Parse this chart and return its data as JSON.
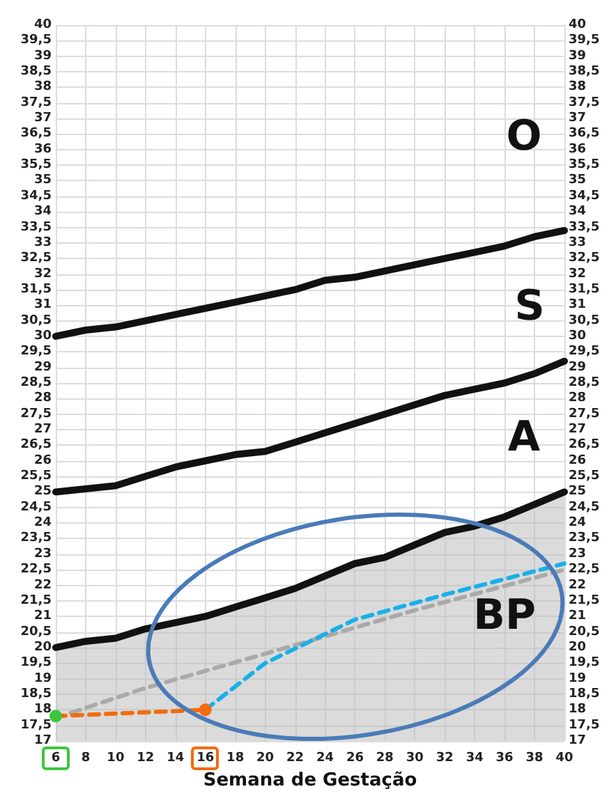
{
  "chart_data": {
    "type": "line",
    "xlabel": "Semana de Gestação",
    "xlim": [
      6,
      40
    ],
    "xticks": [
      6,
      8,
      10,
      12,
      14,
      16,
      18,
      20,
      22,
      24,
      26,
      28,
      30,
      32,
      34,
      36,
      38,
      40
    ],
    "ylim": [
      17,
      40
    ],
    "yticks": [
      17,
      {
        "value": 17.5,
        "label": "17,5"
      },
      18,
      {
        "value": 18.5,
        "label": "18,5"
      },
      19,
      {
        "value": 19.5,
        "label": "19,5"
      },
      20,
      {
        "value": 20.5,
        "label": "20,5"
      },
      21,
      {
        "value": 21.5,
        "label": "21,5"
      },
      22,
      {
        "value": 22.5,
        "label": "22,5"
      },
      23,
      {
        "value": 23.5,
        "label": "23,5"
      },
      24,
      {
        "value": 24.5,
        "label": "24,5"
      },
      25,
      {
        "value": 25.5,
        "label": "25,5"
      },
      26,
      {
        "value": 26.5,
        "label": "26,5"
      },
      27,
      {
        "value": 27.5,
        "label": "27,5"
      },
      28,
      {
        "value": 28.5,
        "label": "28,5"
      },
      29,
      {
        "value": 29.5,
        "label": "29,5"
      },
      30,
      {
        "value": 30.5,
        "label": "30,5"
      },
      31,
      {
        "value": 31.5,
        "label": "31,5"
      },
      32,
      {
        "value": 32.5,
        "label": "32,5"
      },
      33,
      {
        "value": 33.5,
        "label": "33,5"
      },
      34,
      {
        "value": 34.5,
        "label": "34,5"
      },
      35,
      {
        "value": 35.5,
        "label": "35,5"
      },
      36,
      {
        "value": 36.5,
        "label": "36,5"
      },
      37,
      {
        "value": 37.5,
        "label": "37,5"
      },
      38,
      {
        "value": 38.5,
        "label": "38,5"
      },
      39,
      {
        "value": 39.5,
        "label": "39,5"
      },
      40
    ],
    "y2lim": [
      17,
      40
    ],
    "y2ticks": [
      17,
      {
        "value": 17.5,
        "label": "17,5"
      },
      18,
      {
        "value": 18.5,
        "label": "18,5"
      },
      19,
      {
        "value": 19.5,
        "label": "19,5"
      },
      20,
      {
        "value": 20.5,
        "label": "20,5"
      },
      21,
      {
        "value": 21.5,
        "label": "21,5"
      },
      22,
      {
        "value": 22.5,
        "label": "22,5"
      },
      23,
      {
        "value": 23.5,
        "label": "23,5"
      },
      24,
      {
        "value": 24.5,
        "label": "24,5"
      },
      25,
      {
        "value": 25.5,
        "label": "25,5"
      },
      26,
      {
        "value": 26.5,
        "label": "26,5"
      },
      27,
      {
        "value": 27.5,
        "label": "27,5"
      },
      28,
      {
        "value": 28.5,
        "label": "28,5"
      },
      29,
      {
        "value": 29.5,
        "label": "29,5"
      },
      30,
      {
        "value": 30.5,
        "label": "30,5"
      },
      31,
      {
        "value": 31.5,
        "label": "31,5"
      },
      32,
      {
        "value": 32.5,
        "label": "32,5"
      },
      33,
      {
        "value": 33.5,
        "label": "33,5"
      },
      34,
      {
        "value": 34.5,
        "label": "34,5"
      },
      35,
      {
        "value": 35.5,
        "label": "35,5"
      },
      36,
      {
        "value": 36.5,
        "label": "36,5"
      },
      37,
      {
        "value": 37.5,
        "label": "37,5"
      },
      38,
      {
        "value": 38.5,
        "label": "38,5"
      },
      39,
      {
        "value": 39.5,
        "label": "39,5"
      },
      40
    ],
    "grid": true,
    "marker": "none",
    "series": [
      {
        "type": "area",
        "color": "#111111",
        "line_style": "solid",
        "x": [
          6,
          8,
          10,
          12,
          14,
          16,
          18,
          20,
          22,
          24,
          26,
          28,
          30,
          32,
          34,
          36,
          38,
          40
        ],
        "values": [
          20,
          20.2,
          20.3,
          20.6,
          20.8,
          21.0,
          21.3,
          21.6,
          21.9,
          22.3,
          22.7,
          22.9,
          23.3,
          23.7,
          23.9,
          24.2,
          24.6,
          25
        ]
      },
      {
        "color": "#111111",
        "line_style": "solid",
        "x": [
          6,
          8,
          10,
          12,
          14,
          16,
          18,
          20,
          22,
          24,
          26,
          28,
          30,
          32,
          34,
          36,
          38,
          40
        ],
        "values": [
          25,
          25.1,
          25.2,
          25.5,
          25.8,
          26.0,
          26.2,
          26.3,
          26.6,
          26.9,
          27.2,
          27.5,
          27.8,
          28.1,
          28.3,
          28.5,
          28.8,
          29.2
        ]
      },
      {
        "color": "#111111",
        "line_style": "solid",
        "x": [
          6,
          8,
          10,
          12,
          14,
          16,
          18,
          20,
          22,
          24,
          26,
          28,
          30,
          32,
          34,
          36,
          38,
          40
        ],
        "values": [
          30,
          30.2,
          30.3,
          30.5,
          30.7,
          30.9,
          31.1,
          31.3,
          31.5,
          31.8,
          31.9,
          32.1,
          32.3,
          32.5,
          32.7,
          32.9,
          33.2,
          33.4
        ]
      },
      {
        "color": "#aaaaaa",
        "line_style": "dashed",
        "x": [
          7,
          12,
          20,
          30,
          40
        ],
        "values": [
          17.9,
          18.7,
          19.8,
          21.2,
          22.5
        ]
      },
      {
        "color": "#1ab0e8",
        "line_style": "dashed",
        "x": [
          16,
          20,
          26,
          32,
          40
        ],
        "values": [
          18.0,
          19.5,
          20.9,
          21.7,
          22.7
        ]
      },
      {
        "color": "#f26b0f",
        "line_style": "dashed",
        "marker": "circle",
        "colors": [
          "#3cc63c",
          "#f26b0f"
        ],
        "x": [
          6,
          16
        ],
        "values": [
          17.8,
          18.0
        ]
      }
    ],
    "annotations": [
      "O",
      "S",
      "A",
      "BP"
    ]
  }
}
